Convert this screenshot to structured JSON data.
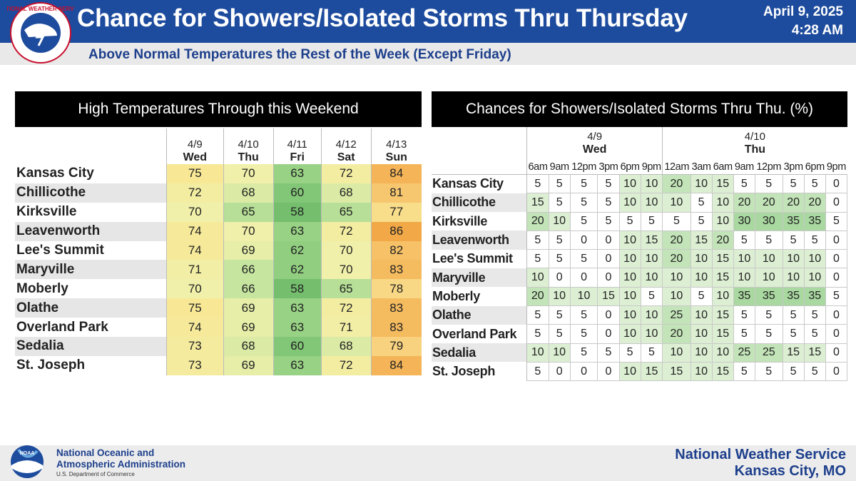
{
  "header": {
    "title": "Chance for Showers/Isolated Storms Thru Thursday",
    "date": "April 9, 2025",
    "time": "4:28 AM",
    "subtitle": "Above Normal Temperatures the Rest of the Week (Except Friday)",
    "logo_text": "NATIONAL WEATHER SERVICE"
  },
  "temps": {
    "title": "High Temperatures Through this Weekend",
    "columns": [
      {
        "date": "4/9",
        "day": "Wed"
      },
      {
        "date": "4/10",
        "day": "Thu"
      },
      {
        "date": "4/11",
        "day": "Fri"
      },
      {
        "date": "4/12",
        "day": "Sat"
      },
      {
        "date": "4/13",
        "day": "Sun"
      }
    ],
    "rows": [
      {
        "city": "Kansas City",
        "values": [
          75,
          70,
          63,
          72,
          84
        ]
      },
      {
        "city": "Chillicothe",
        "values": [
          72,
          68,
          60,
          68,
          81
        ]
      },
      {
        "city": "Kirksville",
        "values": [
          70,
          65,
          58,
          65,
          77
        ]
      },
      {
        "city": "Leavenworth",
        "values": [
          74,
          70,
          63,
          72,
          86
        ]
      },
      {
        "city": "Lee's Summit",
        "values": [
          74,
          69,
          62,
          70,
          82
        ]
      },
      {
        "city": "Maryville",
        "values": [
          71,
          66,
          62,
          70,
          83
        ]
      },
      {
        "city": "Moberly",
        "values": [
          70,
          66,
          58,
          65,
          78
        ]
      },
      {
        "city": "Olathe",
        "values": [
          75,
          69,
          63,
          72,
          83
        ]
      },
      {
        "city": "Overland Park",
        "values": [
          74,
          69,
          63,
          71,
          83
        ]
      },
      {
        "city": "Sedalia",
        "values": [
          73,
          68,
          60,
          68,
          79
        ]
      },
      {
        "city": "St. Joseph",
        "values": [
          73,
          69,
          63,
          72,
          84
        ]
      }
    ]
  },
  "showers": {
    "title": "Chances for Showers/Isolated Storms Thru Thu. (%)",
    "days": [
      {
        "date": "4/9",
        "day": "Wed",
        "span": 6
      },
      {
        "date": "4/10",
        "day": "Thu",
        "span": 8
      }
    ],
    "times": [
      "6am",
      "9am",
      "12pm",
      "3pm",
      "6pm",
      "9pm",
      "12am",
      "3am",
      "6am",
      "9am",
      "12pm",
      "3pm",
      "6pm",
      "9pm"
    ],
    "rows": [
      {
        "city": "Kansas City",
        "values": [
          5,
          5,
          5,
          5,
          10,
          10,
          20,
          10,
          15,
          5,
          5,
          5,
          5,
          0
        ]
      },
      {
        "city": "Chillicothe",
        "values": [
          15,
          5,
          5,
          5,
          10,
          10,
          10,
          5,
          10,
          20,
          20,
          20,
          20,
          0
        ]
      },
      {
        "city": "Kirksville",
        "values": [
          20,
          10,
          5,
          5,
          5,
          5,
          5,
          5,
          10,
          30,
          30,
          35,
          35,
          5
        ]
      },
      {
        "city": "Leavenworth",
        "values": [
          5,
          5,
          0,
          0,
          10,
          15,
          20,
          15,
          20,
          5,
          5,
          5,
          5,
          0
        ]
      },
      {
        "city": "Lee's Summit",
        "values": [
          5,
          5,
          5,
          0,
          10,
          10,
          20,
          10,
          15,
          10,
          10,
          10,
          10,
          0
        ]
      },
      {
        "city": "Maryville",
        "values": [
          10,
          0,
          0,
          0,
          10,
          10,
          10,
          10,
          15,
          10,
          10,
          10,
          10,
          0
        ]
      },
      {
        "city": "Moberly",
        "values": [
          20,
          10,
          10,
          15,
          10,
          5,
          10,
          5,
          10,
          35,
          35,
          35,
          35,
          5
        ]
      },
      {
        "city": "Olathe",
        "values": [
          5,
          5,
          5,
          0,
          10,
          10,
          25,
          10,
          15,
          5,
          5,
          5,
          5,
          0
        ]
      },
      {
        "city": "Overland Park",
        "values": [
          5,
          5,
          5,
          0,
          10,
          10,
          20,
          10,
          15,
          5,
          5,
          5,
          5,
          0
        ]
      },
      {
        "city": "Sedalia",
        "values": [
          10,
          10,
          5,
          5,
          5,
          5,
          10,
          10,
          10,
          25,
          25,
          15,
          15,
          0
        ]
      },
      {
        "city": "St. Joseph",
        "values": [
          5,
          0,
          0,
          0,
          10,
          15,
          15,
          10,
          15,
          5,
          5,
          5,
          5,
          0
        ]
      }
    ]
  },
  "footer": {
    "noaa_line1": "National Oceanic and",
    "noaa_line2": "Atmospheric Administration",
    "noaa_dept": "U.S. Department of Commerce",
    "noaa_logo_text": "NOAA",
    "office_line1": "National Weather Service",
    "office_line2": "Kansas City, MO"
  }
}
